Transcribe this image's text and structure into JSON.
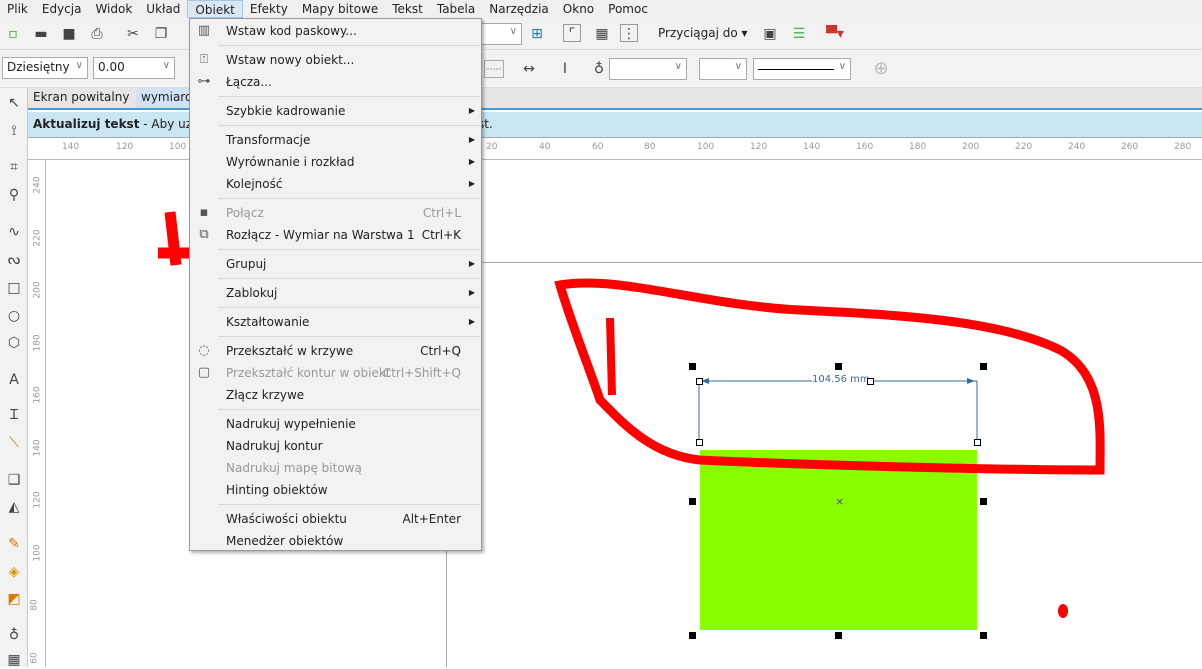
{
  "menubar": [
    "Plik",
    "Edycja",
    "Widok",
    "Układ",
    "Obiekt",
    "Efekty",
    "Mapy bitowe",
    "Tekst",
    "Tabela",
    "Narzędzia",
    "Okno",
    "Pomoc"
  ],
  "toolbar": {
    "snap_label": "Przyciągaj do"
  },
  "property_bar": {
    "units": "Dziesiętny",
    "precision": "0.00"
  },
  "tabs": [
    "Ekran powitalny",
    "wymiarow"
  ],
  "info_bar": {
    "title": "Aktualizuj tekst",
    "text": "-  Aby uzys",
    "tail": "st."
  },
  "ruler_h": [
    "140",
    "120",
    "100",
    "20",
    "40",
    "60",
    "80",
    "100",
    "120",
    "140",
    "160",
    "180",
    "200",
    "220",
    "240",
    "260",
    "280"
  ],
  "ruler_v": [
    "240",
    "220",
    "200",
    "180",
    "160",
    "140",
    "120",
    "100",
    "80",
    "60"
  ],
  "dimension": {
    "label": "104.56 mm"
  },
  "colors": {
    "fill": "#88ff00",
    "annotation": "#ff0000",
    "dimension": "#3a6a9a"
  },
  "menu": {
    "items": [
      {
        "label": "Wstaw kod paskowy...",
        "icon": "barcode-icon"
      },
      {
        "label": "Wstaw nowy obiekt...",
        "icon": "insert-object-icon"
      },
      {
        "label": "Łącza...",
        "icon": "ole-icon"
      },
      {
        "label": "Szybkie kadrowanie",
        "submenu": true
      },
      {
        "label": "Transformacje",
        "submenu": true
      },
      {
        "label": "Wyrównanie i rozkład",
        "submenu": true
      },
      {
        "label": "Kolejność",
        "submenu": true
      },
      {
        "label": "Połącz",
        "shortcut": "Ctrl+L",
        "disabled": true,
        "icon": "combine-icon"
      },
      {
        "label": "Rozłącz - Wymiar na Warstwa 1",
        "shortcut": "Ctrl+K",
        "icon": "break-apart-icon"
      },
      {
        "label": "Grupuj",
        "submenu": true
      },
      {
        "label": "Zablokuj",
        "submenu": true
      },
      {
        "label": "Kształtowanie",
        "submenu": true
      },
      {
        "label": "Przekształć w krzywe",
        "shortcut": "Ctrl+Q",
        "icon": "convert-curves-icon"
      },
      {
        "label": "Przekształć kontur w obiekt",
        "shortcut": "Ctrl+Shift+Q",
        "disabled": true,
        "icon": "outline-object-icon"
      },
      {
        "label": "Złącz krzywe"
      },
      {
        "label": "Nadrukuj wypełnienie"
      },
      {
        "label": "Nadrukuj kontur"
      },
      {
        "label": "Nadrukuj mapę bitową",
        "disabled": true
      },
      {
        "label": "Hinting obiektów"
      },
      {
        "label": "Właściwości obiektu",
        "shortcut": "Alt+Enter"
      },
      {
        "label": "Menedżer obiektów"
      }
    ]
  }
}
